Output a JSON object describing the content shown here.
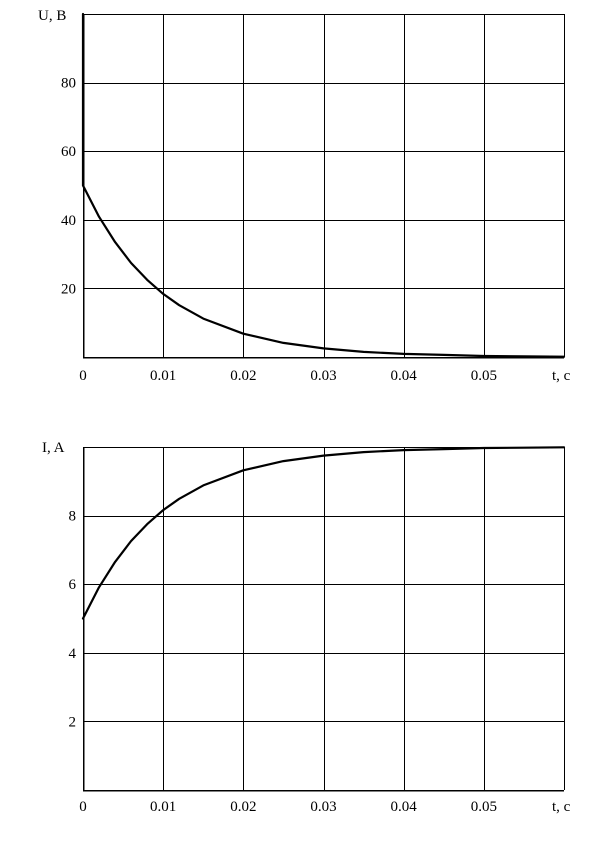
{
  "chart_data": [
    {
      "type": "line",
      "ylabel": "U, В",
      "xlabel": "t, с",
      "xlim": [
        0,
        0.06
      ],
      "ylim": [
        0,
        100
      ],
      "x_ticks": [
        0,
        0.01,
        0.02,
        0.03,
        0.04,
        0.05
      ],
      "x_tick_labels": [
        "0",
        "0.01",
        "0.02",
        "0.03",
        "0.04",
        "0.05"
      ],
      "y_ticks": [
        20,
        40,
        60,
        80
      ],
      "y_tick_labels": [
        "20",
        "40",
        "60",
        "80"
      ],
      "grid": true,
      "series": [
        {
          "x": [
            0,
            0,
            0.002,
            0.004,
            0.006,
            0.008,
            0.01,
            0.012,
            0.015,
            0.02,
            0.025,
            0.03,
            0.035,
            0.04,
            0.045,
            0.05,
            0.055,
            0.06
          ],
          "y": [
            100,
            50,
            40.9,
            33.5,
            27.4,
            22.5,
            18.4,
            15.1,
            11.2,
            6.8,
            4.1,
            2.5,
            1.5,
            0.9,
            0.6,
            0.3,
            0.2,
            0.1
          ]
        }
      ]
    },
    {
      "type": "line",
      "ylabel": "I, A",
      "xlabel": "t, с",
      "xlim": [
        0,
        0.06
      ],
      "ylim": [
        0,
        10
      ],
      "x_ticks": [
        0,
        0.01,
        0.02,
        0.03,
        0.04,
        0.05
      ],
      "x_tick_labels": [
        "0",
        "0.01",
        "0.02",
        "0.03",
        "0.04",
        "0.05"
      ],
      "y_ticks": [
        2,
        4,
        6,
        8
      ],
      "y_tick_labels": [
        "2",
        "4",
        "6",
        "8"
      ],
      "grid": true,
      "series": [
        {
          "x": [
            0,
            0.002,
            0.004,
            0.006,
            0.008,
            0.01,
            0.012,
            0.015,
            0.02,
            0.025,
            0.03,
            0.035,
            0.04,
            0.045,
            0.05,
            0.055,
            0.06
          ],
          "y": [
            5.0,
            5.91,
            6.65,
            7.26,
            7.75,
            8.16,
            8.49,
            8.88,
            9.32,
            9.59,
            9.75,
            9.85,
            9.91,
            9.94,
            9.97,
            9.98,
            9.99
          ]
        }
      ]
    }
  ]
}
